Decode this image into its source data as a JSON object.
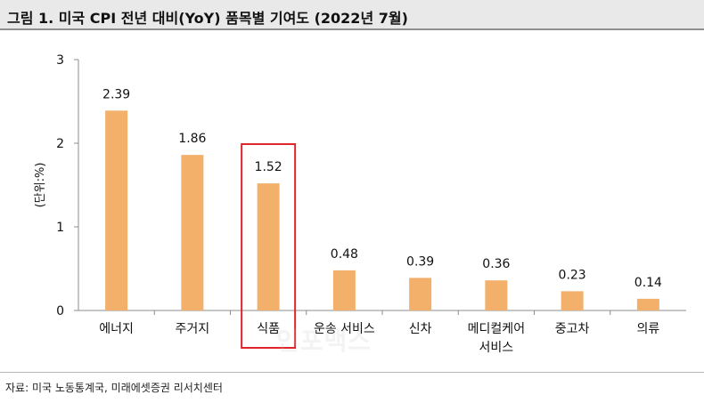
{
  "header": {
    "title": "그림 1. 미국 CPI 전년 대비(YoY) 품목별 기여도 (2022년 7월)"
  },
  "chart_data": {
    "type": "bar",
    "categories": [
      "에너지",
      "주거지",
      "식품",
      "운송 서비스",
      "신차",
      "메디컬케어 서비스",
      "중고차",
      "의류"
    ],
    "category_label_lines": [
      [
        "에너지"
      ],
      [
        "주거지"
      ],
      [
        "식품"
      ],
      [
        "운송 서비스"
      ],
      [
        "신차"
      ],
      [
        "메디컬케어",
        "서비스"
      ],
      [
        "중고차"
      ],
      [
        "의류"
      ]
    ],
    "values": [
      2.39,
      1.86,
      1.52,
      0.48,
      0.39,
      0.36,
      0.23,
      0.14
    ],
    "data_labels": [
      "2.39",
      "1.86",
      "1.52",
      "0.48",
      "0.39",
      "0.36",
      "0.23",
      "0.14"
    ],
    "ylabel": "(단위:%)",
    "ylim": [
      0,
      3
    ],
    "yticks": [
      0,
      1,
      2,
      3
    ],
    "highlight_index": 2,
    "grid": false,
    "colors": {
      "bar": "#f2b06b",
      "highlight_box": "#e0262b",
      "axis": "#8c8c8c"
    }
  },
  "footer": {
    "source": "자료: 미국 노동통계국, 미래에셋증권 리서치센터"
  },
  "watermark": {
    "text": "인포맥스"
  }
}
